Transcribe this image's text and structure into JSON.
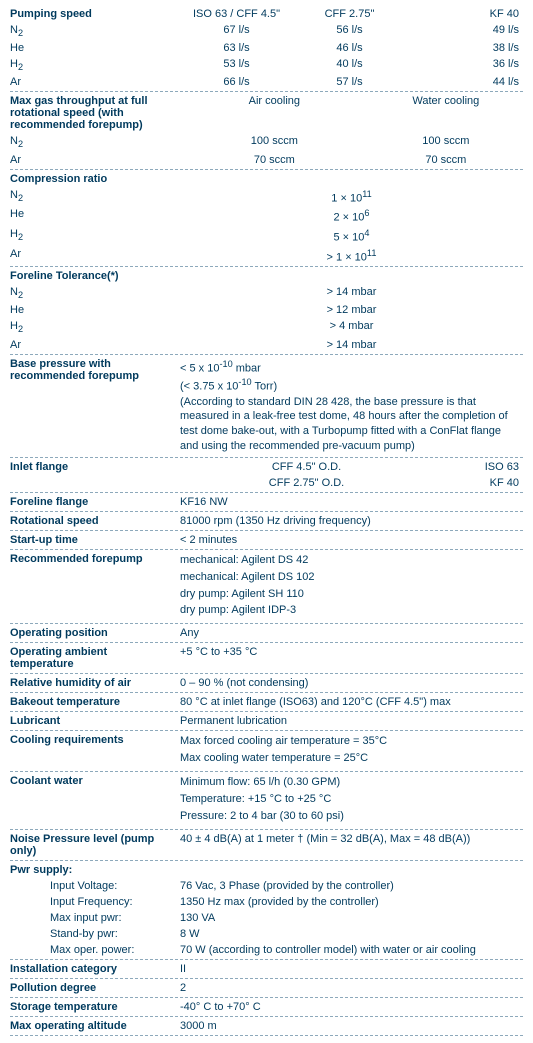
{
  "pumping": {
    "title": "Pumping speed",
    "headers": [
      "ISO 63 / CFF 4.5\"",
      "CFF 2.75\"",
      "KF 40"
    ],
    "rows": [
      {
        "label_html": "N<sub>2</sub>",
        "vals": [
          "67 l/s",
          "56 l/s",
          "49 l/s"
        ]
      },
      {
        "label_html": "He",
        "vals": [
          "63 l/s",
          "46 l/s",
          "38 l/s"
        ]
      },
      {
        "label_html": "H<sub>2</sub>",
        "vals": [
          "53 l/s",
          "40 l/s",
          "36 l/s"
        ]
      },
      {
        "label_html": "Ar",
        "vals": [
          "66 l/s",
          "57 l/s",
          "44 l/s"
        ]
      }
    ]
  },
  "maxgas": {
    "title": "Max gas throughput at full rotational speed (with recommended forepump)",
    "headers": [
      "Air cooling",
      "Water cooling"
    ],
    "rows": [
      {
        "label_html": "N<sub>2</sub>",
        "vals": [
          "100 sccm",
          "100 sccm"
        ]
      },
      {
        "label_html": "Ar",
        "vals": [
          "70 sccm",
          "70 sccm"
        ]
      }
    ]
  },
  "compression": {
    "title": "Compression ratio",
    "rows": [
      {
        "label_html": "N<sub>2</sub>",
        "val_html": "1 × 10<sup>11</sup>"
      },
      {
        "label_html": "He",
        "val_html": "2 × 10<sup>6</sup>"
      },
      {
        "label_html": "H<sub>2</sub>",
        "val_html": "5 × 10<sup>4</sup>"
      },
      {
        "label_html": "Ar",
        "val_html": "> 1 × 10<sup>11</sup>"
      }
    ]
  },
  "foreline_tol": {
    "title": "Foreline Tolerance(*)",
    "rows": [
      {
        "label_html": "N<sub>2</sub>",
        "val": "> 14 mbar"
      },
      {
        "label_html": "He",
        "val": "> 12 mbar"
      },
      {
        "label_html": "H<sub>2</sub>",
        "val": "> 4 mbar"
      },
      {
        "label_html": "Ar",
        "val": "> 14 mbar"
      }
    ]
  },
  "base_pressure": {
    "title": "Base pressure with recommended forepump",
    "line1_html": "< 5 x 10<sup>-10</sup> mbar",
    "line2_html": "(< 3.75 x 10<sup>-10</sup> Torr)",
    "note": "(According to standard DIN 28 428, the base pressure is that measured in a leak-free test dome, 48 hours after the completion of test dome bake-out, with a Turbopump fitted with a ConFlat flange and using the recommended pre-vacuum pump)"
  },
  "inlet_flange": {
    "title": "Inlet flange",
    "r1": [
      "CFF 4.5\" O.D.",
      "ISO 63"
    ],
    "r2": [
      "CFF 2.75\" O.D.",
      "KF 40"
    ]
  },
  "simple": [
    {
      "label": "Foreline flange",
      "val": "KF16 NW"
    },
    {
      "label": "Rotational speed",
      "val": "81000 rpm (1350 Hz driving frequency)"
    },
    {
      "label": "Start-up time",
      "val": "< 2 minutes"
    }
  ],
  "rec_forepump": {
    "title": "Recommended forepump",
    "lines": [
      "mechanical: Agilent DS 42",
      "mechanical: Agilent DS 102",
      "dry pump: Agilent SH 110",
      "dry pump: Agilent IDP-3"
    ]
  },
  "simple2": [
    {
      "label": "Operating position",
      "val": "Any"
    },
    {
      "label": "Operating ambient temperature",
      "val": "+5 °C to +35 °C"
    },
    {
      "label": "Relative humidity of air",
      "val": "0 – 90 % (not condensing)"
    },
    {
      "label": "Bakeout temperature",
      "val": "80 °C at inlet flange (ISO63) and 120°C (CFF 4.5\") max"
    },
    {
      "label": "Lubricant",
      "val": "Permanent lubrication"
    }
  ],
  "cooling_req": {
    "title": "Cooling requirements",
    "lines": [
      "Max forced cooling air temperature = 35°C",
      "Max cooling water temperature = 25°C"
    ]
  },
  "coolant": {
    "title": "Coolant water",
    "lines": [
      "Minimum flow: 65 l/h (0.30 GPM)",
      "Temperature: +15 °C to +25 °C",
      "Pressure: 2 to 4 bar (30 to 60 psi)"
    ]
  },
  "noise": {
    "label": "Noise Pressure level (pump only)",
    "val": "40 ± 4 dB(A) at 1 meter † (Min = 32 dB(A), Max = 48 dB(A))"
  },
  "pwr": {
    "title": "Pwr supply:",
    "rows": [
      {
        "label": "Input Voltage:",
        "val": "76 Vac, 3 Phase (provided by the controller)"
      },
      {
        "label": "Input Frequency:",
        "val": "1350 Hz max (provided by the controller)"
      },
      {
        "label": "Max input pwr:",
        "val": "130 VA"
      },
      {
        "label": "Stand-by pwr:",
        "val": "8 W"
      },
      {
        "label": "Max oper. power:",
        "val": "70 W (according to controller model) with water or air cooling"
      }
    ]
  },
  "simple3": [
    {
      "label": "Installation category",
      "val": "II"
    },
    {
      "label": "Pollution degree",
      "val": "2"
    },
    {
      "label": "Storage temperature",
      "val": "-40° C to +70° C"
    },
    {
      "label": "Max operating altitude",
      "val": "3000 m"
    }
  ]
}
